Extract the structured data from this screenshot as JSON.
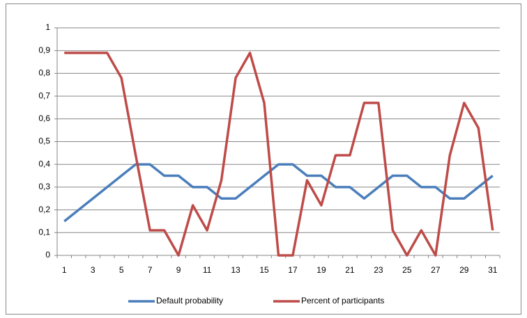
{
  "chart_data": {
    "type": "line",
    "categories": [
      1,
      null,
      3,
      null,
      5,
      null,
      7,
      null,
      9,
      null,
      11,
      null,
      13,
      null,
      15,
      null,
      17,
      null,
      19,
      null,
      21,
      null,
      23,
      null,
      25,
      null,
      27,
      null,
      29,
      null,
      31
    ],
    "series": [
      {
        "name": "Default probability",
        "color": "#4a7ebb",
        "values": [
          0.15,
          0.2,
          0.25,
          0.3,
          0.35,
          0.4,
          0.4,
          0.35,
          0.35,
          0.3,
          0.3,
          0.25,
          0.25,
          0.3,
          0.35,
          0.4,
          0.4,
          0.35,
          0.35,
          0.3,
          0.3,
          0.25,
          0.3,
          0.35,
          0.35,
          0.3,
          0.3,
          0.25,
          0.25,
          0.3,
          0.35
        ]
      },
      {
        "name": "Percent of participants",
        "color": "#be4b48",
        "values": [
          0.89,
          0.89,
          0.89,
          0.89,
          0.78,
          0.44,
          0.11,
          0.11,
          0,
          0.22,
          0.11,
          0.33,
          0.78,
          0.89,
          0.67,
          0,
          0,
          0.33,
          0.22,
          0.44,
          0.44,
          0.67,
          0.67,
          0.11,
          0,
          0.11,
          0,
          0.44,
          0.67,
          0.56,
          0.11
        ]
      }
    ],
    "ylim": [
      0,
      1
    ],
    "yticks": [
      0,
      {
        "value": 0.1,
        "label": "0,1"
      },
      {
        "value": 0.2,
        "label": "0,2"
      },
      {
        "value": 0.3,
        "label": "0,3"
      },
      {
        "value": 0.4,
        "label": "0,4"
      },
      {
        "value": 0.5,
        "label": "0,5"
      },
      {
        "value": 0.6,
        "label": "0,6"
      },
      {
        "value": 0.7,
        "label": "0,7"
      },
      {
        "value": 0.8,
        "label": "0,8"
      },
      {
        "value": 0.9,
        "label": "0,9"
      },
      1
    ],
    "grid": true,
    "legend": "bottom"
  }
}
